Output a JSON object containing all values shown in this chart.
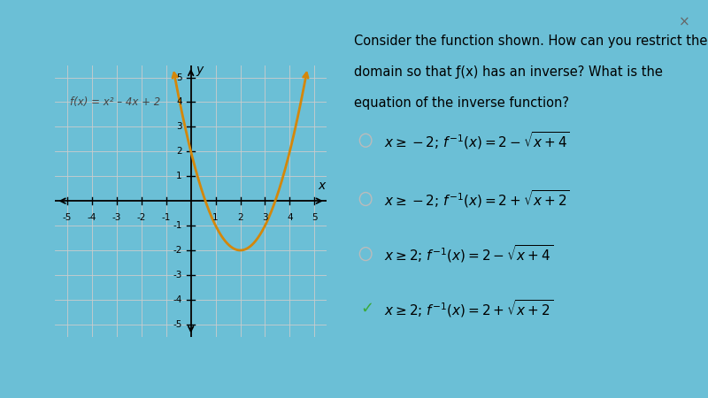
{
  "bg_color": "#6bbfd6",
  "panel_color": "#ffffff",
  "graph_bg": "#f5f5f5",
  "curve_color": "#d4870a",
  "curve_linewidth": 2.0,
  "xlim": [
    -5.5,
    5.5
  ],
  "ylim": [
    -5.5,
    5.5
  ],
  "xticks": [
    -5,
    -4,
    -3,
    -2,
    -1,
    1,
    2,
    3,
    4,
    5
  ],
  "yticks": [
    -5,
    -4,
    -3,
    -2,
    -1,
    1,
    2,
    3,
    4,
    5
  ],
  "func_label": "f(x) = x² – 4x + 2",
  "question_text": "Consider the function shown. How can you restrict the\ndomain so that f(x) has an inverse? What is the\nequation of the inverse function?",
  "options": [
    {
      "correct": false
    },
    {
      "correct": false
    },
    {
      "correct": false
    },
    {
      "correct": true
    }
  ],
  "check_color": "#3aaa3a",
  "circle_color": "#bbbbbb",
  "x_close": 0.963,
  "y_close": 0.938
}
